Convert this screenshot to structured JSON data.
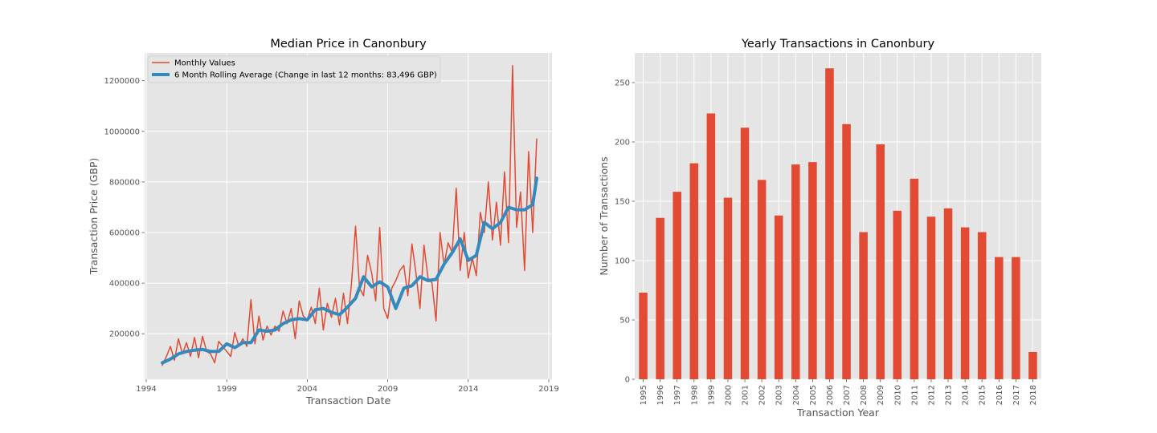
{
  "chart_data": [
    {
      "type": "line",
      "title": "Median Price in Canonbury",
      "xlabel": "Transaction Date",
      "ylabel": "Transaction Price (GBP)",
      "xlim": [
        1993.9,
        2019.2
      ],
      "ylim": [
        20000,
        1310000
      ],
      "x_ticks": [
        1994,
        1999,
        2004,
        2009,
        2014,
        2019
      ],
      "y_ticks": [
        200000,
        400000,
        600000,
        800000,
        1000000,
        1200000
      ],
      "grid": true,
      "legend": "top-left",
      "series": [
        {
          "name": "Monthly Values",
          "color": "#E24A33",
          "x": [
            1995.0,
            1995.25,
            1995.5,
            1995.75,
            1996.0,
            1996.25,
            1996.5,
            1996.75,
            1997.0,
            1997.25,
            1997.5,
            1997.75,
            1998.0,
            1998.25,
            1998.5,
            1998.75,
            1999.0,
            1999.25,
            1999.5,
            1999.75,
            2000.0,
            2000.25,
            2000.5,
            2000.75,
            2001.0,
            2001.25,
            2001.5,
            2001.75,
            2002.0,
            2002.25,
            2002.5,
            2002.75,
            2003.0,
            2003.25,
            2003.5,
            2003.75,
            2004.0,
            2004.25,
            2004.5,
            2004.75,
            2005.0,
            2005.25,
            2005.5,
            2005.75,
            2006.0,
            2006.25,
            2006.5,
            2006.75,
            2007.0,
            2007.25,
            2007.5,
            2007.75,
            2008.0,
            2008.25,
            2008.5,
            2008.75,
            2009.0,
            2009.25,
            2009.5,
            2009.75,
            2010.0,
            2010.25,
            2010.5,
            2010.75,
            2011.0,
            2011.25,
            2011.5,
            2011.75,
            2012.0,
            2012.25,
            2012.5,
            2012.75,
            2013.0,
            2013.25,
            2013.5,
            2013.75,
            2014.0,
            2014.25,
            2014.5,
            2014.75,
            2015.0,
            2015.25,
            2015.5,
            2015.75,
            2016.0,
            2016.25,
            2016.5,
            2016.75,
            2017.0,
            2017.25,
            2017.5,
            2017.75,
            2018.0,
            2018.25
          ],
          "values": [
            75000,
            110000,
            150000,
            95000,
            180000,
            120000,
            165000,
            110000,
            185000,
            105000,
            190000,
            130000,
            120000,
            85000,
            170000,
            150000,
            130000,
            110000,
            205000,
            150000,
            180000,
            150000,
            335000,
            160000,
            270000,
            175000,
            230000,
            195000,
            230000,
            210000,
            290000,
            240000,
            300000,
            180000,
            330000,
            270000,
            255000,
            305000,
            240000,
            380000,
            215000,
            320000,
            265000,
            340000,
            235000,
            360000,
            240000,
            400000,
            625000,
            380000,
            350000,
            510000,
            440000,
            330000,
            620000,
            300000,
            260000,
            380000,
            410000,
            450000,
            470000,
            350000,
            555000,
            440000,
            300000,
            550000,
            420000,
            400000,
            250000,
            600000,
            470000,
            560000,
            520000,
            775000,
            450000,
            600000,
            420000,
            500000,
            430000,
            680000,
            600000,
            800000,
            570000,
            720000,
            550000,
            840000,
            560000,
            1260000,
            620000,
            760000,
            450000,
            920000,
            600000,
            970000
          ]
        },
        {
          "name": "6 Month Rolling Average (Change in last 12 months: 83,496 GBP)",
          "color": "#348ABD",
          "x": [
            1995.0,
            1995.5,
            1996.0,
            1996.5,
            1997.0,
            1997.5,
            1998.0,
            1998.5,
            1999.0,
            1999.5,
            2000.0,
            2000.5,
            2001.0,
            2001.5,
            2002.0,
            2002.5,
            2003.0,
            2003.5,
            2004.0,
            2004.5,
            2005.0,
            2005.5,
            2006.0,
            2006.5,
            2007.0,
            2007.5,
            2008.0,
            2008.5,
            2009.0,
            2009.5,
            2010.0,
            2010.5,
            2011.0,
            2011.5,
            2012.0,
            2012.5,
            2013.0,
            2013.5,
            2014.0,
            2014.5,
            2015.0,
            2015.5,
            2016.0,
            2016.5,
            2017.0,
            2017.5,
            2018.0,
            2018.25
          ],
          "values": [
            85000,
            100000,
            120000,
            130000,
            135000,
            138000,
            130000,
            130000,
            160000,
            145000,
            165000,
            165000,
            215000,
            210000,
            215000,
            240000,
            255000,
            260000,
            255000,
            295000,
            300000,
            285000,
            275000,
            305000,
            340000,
            425000,
            385000,
            405000,
            385000,
            300000,
            380000,
            390000,
            425000,
            410000,
            415000,
            475000,
            520000,
            575000,
            490000,
            510000,
            640000,
            615000,
            640000,
            700000,
            690000,
            690000,
            710000,
            815000
          ]
        }
      ]
    },
    {
      "type": "bar",
      "title": "Yearly Transactions in Canonbury",
      "xlabel": "Transaction Year",
      "ylabel": "Number of Transactions",
      "ylim": [
        0,
        275
      ],
      "y_ticks": [
        0,
        50,
        100,
        150,
        200,
        250
      ],
      "grid": true,
      "color": "#E24A33",
      "categories": [
        "1995",
        "1996",
        "1997",
        "1998",
        "1999",
        "2000",
        "2001",
        "2002",
        "2003",
        "2004",
        "2005",
        "2006",
        "2007",
        "2008",
        "2009",
        "2010",
        "2011",
        "2012",
        "2013",
        "2014",
        "2015",
        "2016",
        "2017",
        "2018"
      ],
      "values": [
        73,
        136,
        158,
        182,
        224,
        153,
        212,
        168,
        138,
        181,
        183,
        262,
        215,
        124,
        198,
        142,
        169,
        137,
        144,
        128,
        124,
        103,
        103,
        23
      ]
    }
  ]
}
